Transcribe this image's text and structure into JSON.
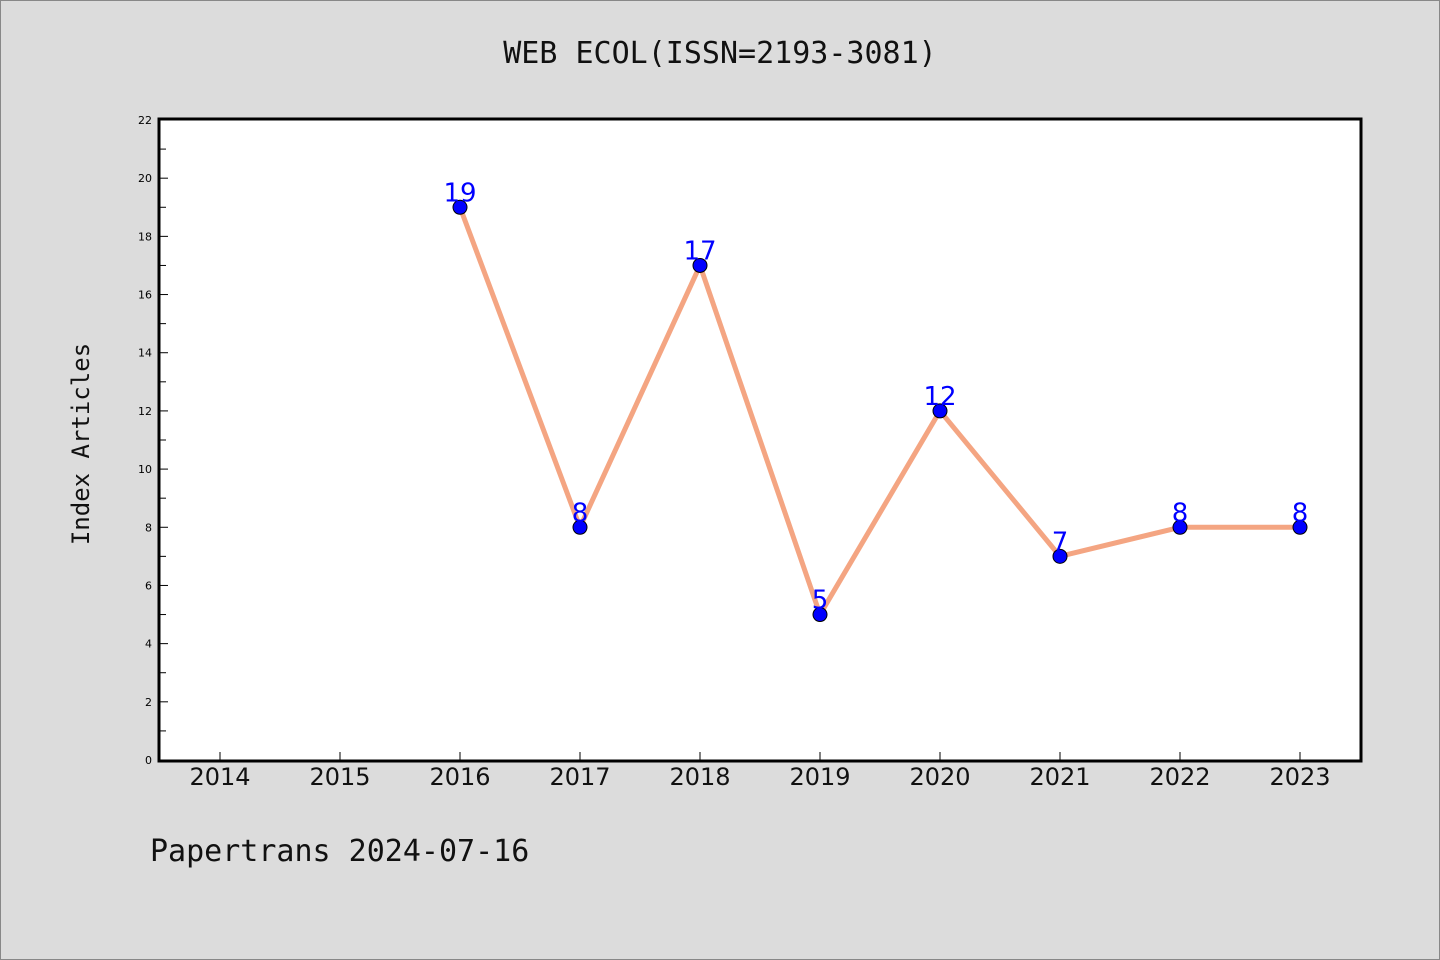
{
  "chart_data": {
    "type": "line",
    "title": "WEB ECOL(ISSN=2193-3081)",
    "xlabel": "",
    "ylabel": "Index Articles",
    "categories": [
      "2014",
      "2015",
      "2016",
      "2017",
      "2018",
      "2019",
      "2020",
      "2021",
      "2022",
      "2023"
    ],
    "series": [
      {
        "values": [
          null,
          null,
          19,
          8,
          17,
          5,
          12,
          7,
          8,
          8
        ]
      }
    ],
    "ylim": [
      0,
      22
    ],
    "yticks": [
      0,
      2,
      4,
      6,
      8,
      10,
      12,
      14,
      16,
      18,
      20,
      22
    ],
    "grid": false,
    "legend": "none",
    "colors": {
      "line": "#f4a582",
      "marker": "#0000ff",
      "data_label": "#0000ff",
      "plot_background": "#ffffff",
      "page_background": "#dcdcdc"
    }
  },
  "footer": {
    "text": "Papertrans 2024-07-16"
  }
}
